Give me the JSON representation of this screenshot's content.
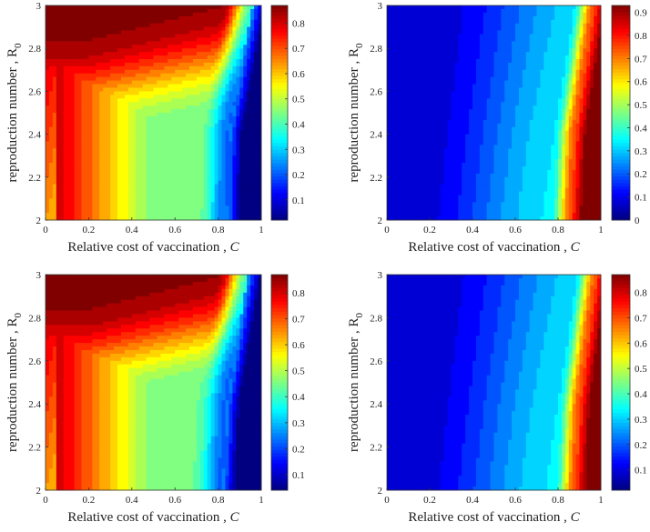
{
  "chart_data": [
    {
      "type": "heatmap",
      "panel": "top-left",
      "xlabel": "Relative cost of vaccination ,",
      "xlabel_var": "C",
      "ylabel": "reproduction number , R",
      "ylabel_sub": "0",
      "xlim": [
        0,
        1
      ],
      "ylim": [
        2,
        3
      ],
      "xticks": [
        "0",
        "0.2",
        "0.4",
        "0.6",
        "0.8",
        "1"
      ],
      "yticks": [
        "2",
        "2.2",
        "2.4",
        "2.6",
        "2.8",
        "3"
      ],
      "colorbar": {
        "min": 0.02,
        "max": 0.87,
        "ticks": [
          "0.1",
          "0.2",
          "0.3",
          "0.4",
          "0.5",
          "0.6",
          "0.7",
          "0.8"
        ]
      },
      "field": "high_low",
      "boundary_cost_at_R0": {
        "R0": [
          2.0,
          2.4,
          3.0
        ],
        "C": [
          0.84,
          0.85,
          0.96
        ]
      },
      "plateau_value": 0.5
    },
    {
      "type": "heatmap",
      "panel": "top-right",
      "xlabel": "Relative cost of vaccination ,",
      "xlabel_var": "C",
      "ylabel": "reproduction number , R",
      "ylabel_sub": "0",
      "xlim": [
        0,
        1
      ],
      "ylim": [
        2,
        3
      ],
      "xticks": [
        "0",
        "0.2",
        "0.4",
        "0.6",
        "0.8",
        "1"
      ],
      "yticks": [
        "2",
        "2.2",
        "2.4",
        "2.6",
        "2.8",
        "3"
      ],
      "colorbar": {
        "min": 0.0,
        "max": 0.93,
        "ticks": [
          "0",
          "0.1",
          "0.2",
          "0.3",
          "0.4",
          "0.5",
          "0.6",
          "0.7",
          "0.8",
          "0.9"
        ]
      },
      "field": "low_high",
      "boundary_cost_at_R0": {
        "R0": [
          2.0,
          2.4,
          3.0
        ],
        "C": [
          0.86,
          0.88,
          0.97
        ]
      },
      "plateau_value": 0.3
    },
    {
      "type": "heatmap",
      "panel": "bottom-left",
      "xlabel": "Relative cost of vaccination ,",
      "xlabel_var": "C",
      "ylabel": "reproduction number , R",
      "ylabel_sub": "0",
      "xlim": [
        0,
        1
      ],
      "ylim": [
        2,
        3
      ],
      "xticks": [
        "0",
        "0.2",
        "0.4",
        "0.6",
        "0.8",
        "1"
      ],
      "yticks": [
        "2",
        "2.2",
        "2.4",
        "2.6",
        "2.8",
        "3"
      ],
      "colorbar": {
        "min": 0.04,
        "max": 0.87,
        "ticks": [
          "0.1",
          "0.2",
          "0.3",
          "0.4",
          "0.5",
          "0.6",
          "0.7",
          "0.8"
        ]
      },
      "field": "high_low",
      "boundary_cost_at_R0": {
        "R0": [
          2.0,
          2.4,
          3.0
        ],
        "C": [
          0.82,
          0.84,
          0.94
        ]
      },
      "plateau_value": 0.48
    },
    {
      "type": "heatmap",
      "panel": "bottom-right",
      "xlabel": "Relative cost of vaccination ,",
      "xlabel_var": "C",
      "ylabel": "reproduction number , R",
      "ylabel_sub": "0",
      "xlim": [
        0,
        1
      ],
      "ylim": [
        2,
        3
      ],
      "xticks": [
        "0",
        "0.2",
        "0.4",
        "0.6",
        "0.8",
        "1"
      ],
      "yticks": [
        "2",
        "2.2",
        "2.4",
        "2.6",
        "2.8",
        "3"
      ],
      "colorbar": {
        "min": 0.02,
        "max": 0.87,
        "ticks": [
          "0.1",
          "0.2",
          "0.3",
          "0.4",
          "0.5",
          "0.6",
          "0.7",
          "0.8"
        ]
      },
      "field": "low_high",
      "boundary_cost_at_R0": {
        "R0": [
          2.0,
          2.4,
          3.0
        ],
        "C": [
          0.88,
          0.9,
          0.98
        ]
      },
      "plateau_value": 0.35
    }
  ]
}
